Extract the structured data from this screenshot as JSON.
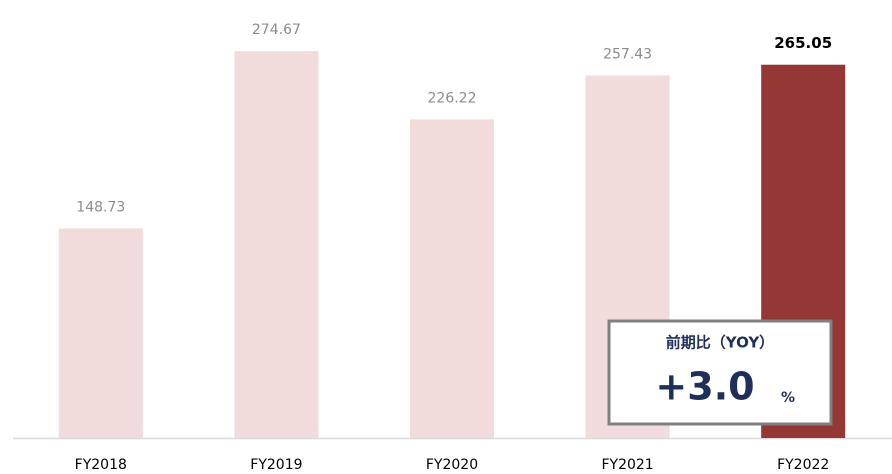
{
  "chart_data": {
    "type": "bar",
    "categories": [
      "FY2018",
      "FY2019",
      "FY2020",
      "FY2021",
      "FY2022"
    ],
    "values": [
      148.73,
      274.67,
      226.22,
      257.43,
      265.05
    ],
    "colors": [
      "#f2dcdb",
      "#f2dcdb",
      "#f2dcdb",
      "#f2dcdb",
      "#953735"
    ],
    "highlight": "FY2022",
    "ylim": [
      0,
      311
    ],
    "annotation": {
      "label": "前期比（YOY）",
      "value": "+3.0",
      "unit": "%"
    }
  }
}
